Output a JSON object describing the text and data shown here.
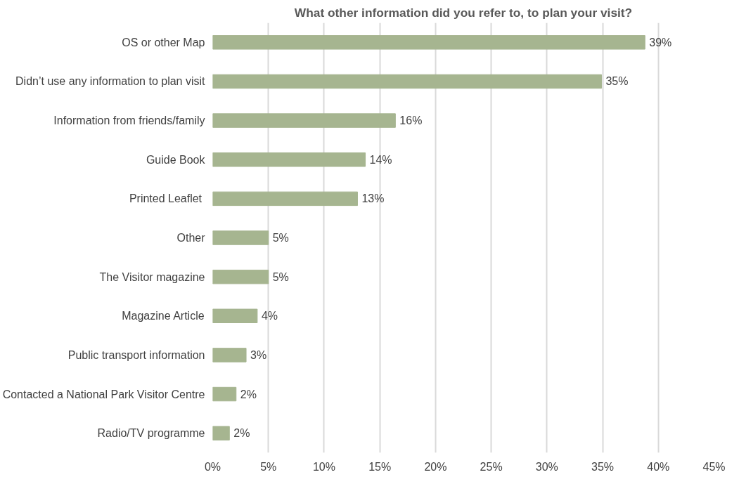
{
  "chart_data": {
    "type": "bar",
    "orientation": "horizontal",
    "title": "What other information did you refer to, to plan your visit?",
    "categories": [
      "OS or other Map",
      "Didn’t use any information to plan visit",
      "Information from friends/family",
      "Guide Book",
      "Printed Leaflet ",
      "Other",
      "The Visitor magazine",
      "Magazine Article",
      "Public transport information",
      "Contacted a National Park Visitor Centre",
      "Radio/TV programme"
    ],
    "values": [
      38.8,
      34.9,
      16.4,
      13.7,
      13.0,
      5.0,
      5.0,
      4.0,
      3.0,
      2.1,
      1.5
    ],
    "value_labels": [
      "39%",
      "35%",
      "16%",
      "14%",
      "13%",
      "5%",
      "5%",
      "4%",
      "3%",
      "2%",
      "2%"
    ],
    "color": "#a6b590",
    "xlim": [
      0,
      45
    ],
    "xticks": [
      {
        "value": 0,
        "label": "0%"
      },
      {
        "value": 5,
        "label": "5%"
      },
      {
        "value": 10,
        "label": "10%"
      },
      {
        "value": 15,
        "label": "15%"
      },
      {
        "value": 20,
        "label": "20%"
      },
      {
        "value": 25,
        "label": "25%"
      },
      {
        "value": 30,
        "label": "30%"
      },
      {
        "value": 35,
        "label": "35%"
      },
      {
        "value": 40,
        "label": "40%"
      },
      {
        "value": 45,
        "label": "45%"
      }
    ],
    "grid": "x"
  }
}
